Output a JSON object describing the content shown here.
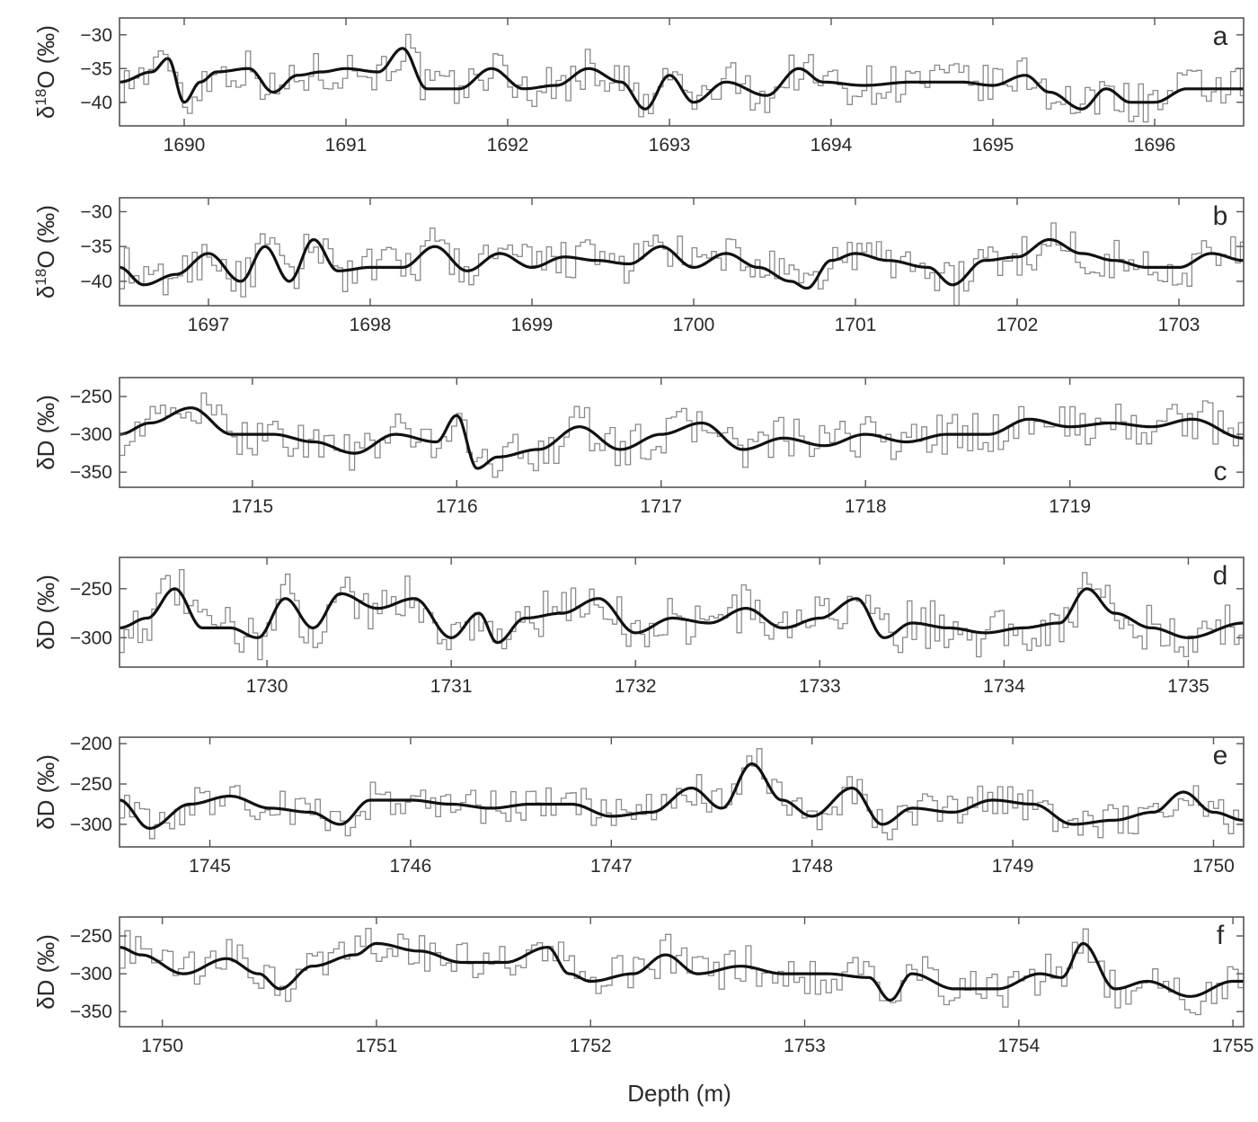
{
  "figure": {
    "xlabel": "Depth (m)"
  },
  "colors": {
    "raw": "#8a8a8a",
    "smooth": "#111111",
    "frame": "#555555",
    "text": "#2a2a2a"
  },
  "chart_data": [
    {
      "type": "line",
      "panel_label": "a",
      "ylabel_base": "δ",
      "ylabel_sup": "18",
      "ylabel_tail": "O (‰)",
      "xlim": [
        1689.6,
        1696.55
      ],
      "ylim": [
        -43.5,
        -27.5
      ],
      "xticks": [
        1690,
        1691,
        1692,
        1693,
        1694,
        1695,
        1696
      ],
      "yticks": [
        -30,
        -35,
        -40
      ],
      "grid": false,
      "series": [
        {
          "role": "raw",
          "step": 0.03,
          "amp": 2.2
        },
        {
          "role": "smooth",
          "x": [
            1689.6,
            1689.8,
            1689.9,
            1690.0,
            1690.1,
            1690.2,
            1690.4,
            1690.55,
            1690.7,
            1690.85,
            1691.0,
            1691.2,
            1691.35,
            1691.5,
            1691.7,
            1691.9,
            1692.1,
            1692.3,
            1692.5,
            1692.7,
            1692.85,
            1693.0,
            1693.15,
            1693.35,
            1693.6,
            1693.8,
            1693.95,
            1694.2,
            1694.5,
            1694.8,
            1695.0,
            1695.2,
            1695.35,
            1695.55,
            1695.7,
            1695.85,
            1696.0,
            1696.2,
            1696.55
          ],
          "values": [
            -37,
            -35.5,
            -33.5,
            -40,
            -37,
            -35.5,
            -35,
            -38.5,
            -36,
            -35.5,
            -35,
            -35.5,
            -32,
            -38,
            -38,
            -35,
            -38,
            -37.5,
            -35,
            -37,
            -41,
            -36,
            -40,
            -37,
            -39,
            -35,
            -37,
            -37.5,
            -37,
            -37,
            -37.5,
            -36,
            -38.5,
            -41,
            -38,
            -40,
            -40,
            -38,
            -38
          ]
        }
      ]
    },
    {
      "type": "line",
      "panel_label": "b",
      "ylabel_base": "δ",
      "ylabel_sup": "18",
      "ylabel_tail": "O (‰)",
      "xlim": [
        1696.45,
        1703.4
      ],
      "ylim": [
        -43.5,
        -28
      ],
      "xticks": [
        1697,
        1698,
        1699,
        1700,
        1701,
        1702,
        1703
      ],
      "yticks": [
        -30,
        -35,
        -40
      ],
      "grid": false,
      "series": [
        {
          "role": "raw",
          "step": 0.03,
          "amp": 2.2
        },
        {
          "role": "smooth",
          "x": [
            1696.45,
            1696.6,
            1696.8,
            1697.0,
            1697.2,
            1697.35,
            1697.5,
            1697.65,
            1697.8,
            1698.0,
            1698.2,
            1698.4,
            1698.6,
            1698.8,
            1699.0,
            1699.2,
            1699.4,
            1699.6,
            1699.8,
            1700.0,
            1700.2,
            1700.4,
            1700.6,
            1700.7,
            1700.85,
            1701.0,
            1701.2,
            1701.45,
            1701.6,
            1701.8,
            1702.0,
            1702.2,
            1702.4,
            1702.6,
            1702.8,
            1703.0,
            1703.2,
            1703.4
          ],
          "values": [
            -38,
            -40.5,
            -39,
            -36,
            -40,
            -35,
            -40,
            -34,
            -38.5,
            -38,
            -38,
            -35,
            -38.5,
            -36,
            -38,
            -36.5,
            -37,
            -37.5,
            -35,
            -38,
            -36,
            -38,
            -40,
            -41,
            -37,
            -36,
            -37,
            -38,
            -40.5,
            -37,
            -36.5,
            -34,
            -36,
            -37,
            -38,
            -38,
            -36,
            -37
          ]
        }
      ]
    },
    {
      "type": "line",
      "panel_label": "c",
      "ylabel_base": "δ",
      "ylabel_sup": "",
      "ylabel_tail": "D (‰)",
      "xlim": [
        1714.35,
        1719.85
      ],
      "ylim": [
        -370,
        -225
      ],
      "xticks": [
        1715,
        1716,
        1717,
        1718,
        1719
      ],
      "yticks": [
        -250,
        -300,
        -350
      ],
      "grid": false,
      "series": [
        {
          "role": "raw",
          "step": 0.025,
          "amp": 20
        },
        {
          "role": "smooth",
          "x": [
            1714.35,
            1714.5,
            1714.7,
            1714.9,
            1715.1,
            1715.3,
            1715.5,
            1715.7,
            1715.9,
            1716.0,
            1716.1,
            1716.2,
            1716.4,
            1716.6,
            1716.8,
            1717.0,
            1717.2,
            1717.4,
            1717.6,
            1717.8,
            1718.0,
            1718.2,
            1718.4,
            1718.6,
            1718.8,
            1719.0,
            1719.2,
            1719.4,
            1719.6,
            1719.85
          ],
          "values": [
            -300,
            -285,
            -265,
            -300,
            -300,
            -310,
            -325,
            -300,
            -310,
            -275,
            -345,
            -330,
            -320,
            -290,
            -320,
            -300,
            -285,
            -320,
            -305,
            -315,
            -300,
            -310,
            -300,
            -300,
            -280,
            -290,
            -285,
            -290,
            -280,
            -305
          ]
        }
      ]
    },
    {
      "type": "line",
      "panel_label": "d",
      "ylabel_base": "δ",
      "ylabel_sup": "",
      "ylabel_tail": "D (‰)",
      "xlim": [
        1729.2,
        1735.3
      ],
      "ylim": [
        -330,
        -218
      ],
      "xticks": [
        1730,
        1731,
        1732,
        1733,
        1734,
        1735
      ],
      "yticks": [
        -250,
        -300
      ],
      "grid": false,
      "series": [
        {
          "role": "raw",
          "step": 0.025,
          "amp": 18
        },
        {
          "role": "smooth",
          "x": [
            1729.2,
            1729.35,
            1729.5,
            1729.65,
            1729.8,
            1729.95,
            1730.1,
            1730.25,
            1730.4,
            1730.6,
            1730.8,
            1731.0,
            1731.15,
            1731.25,
            1731.4,
            1731.6,
            1731.8,
            1732.0,
            1732.2,
            1732.4,
            1732.6,
            1732.8,
            1733.0,
            1733.2,
            1733.35,
            1733.5,
            1733.7,
            1733.9,
            1734.1,
            1734.3,
            1734.45,
            1734.6,
            1734.8,
            1735.0,
            1735.3
          ],
          "values": [
            -290,
            -280,
            -250,
            -290,
            -290,
            -300,
            -260,
            -290,
            -255,
            -270,
            -260,
            -300,
            -275,
            -305,
            -280,
            -275,
            -260,
            -295,
            -280,
            -285,
            -270,
            -290,
            -280,
            -260,
            -300,
            -285,
            -290,
            -295,
            -290,
            -285,
            -250,
            -275,
            -290,
            -300,
            -285
          ]
        }
      ]
    },
    {
      "type": "line",
      "panel_label": "e",
      "ylabel_base": "δ",
      "ylabel_sup": "",
      "ylabel_tail": "D (‰)",
      "xlim": [
        1744.55,
        1750.15
      ],
      "ylim": [
        -328,
        -192
      ],
      "xticks": [
        1745,
        1746,
        1747,
        1748,
        1749,
        1750
      ],
      "yticks": [
        -200,
        -250,
        -300
      ],
      "grid": false,
      "series": [
        {
          "role": "raw",
          "step": 0.025,
          "amp": 16
        },
        {
          "role": "smooth",
          "x": [
            1744.55,
            1744.7,
            1744.9,
            1745.1,
            1745.3,
            1745.5,
            1745.65,
            1745.8,
            1746.0,
            1746.2,
            1746.4,
            1746.6,
            1746.8,
            1747.0,
            1747.2,
            1747.4,
            1747.55,
            1747.7,
            1747.85,
            1748.0,
            1748.2,
            1748.35,
            1748.5,
            1748.7,
            1748.9,
            1749.1,
            1749.3,
            1749.5,
            1749.7,
            1749.85,
            1750.0,
            1750.15
          ],
          "values": [
            -270,
            -305,
            -275,
            -265,
            -280,
            -285,
            -300,
            -270,
            -270,
            -275,
            -280,
            -275,
            -275,
            -290,
            -285,
            -255,
            -280,
            -225,
            -270,
            -290,
            -255,
            -300,
            -280,
            -285,
            -270,
            -275,
            -300,
            -295,
            -285,
            -260,
            -285,
            -295
          ]
        }
      ]
    },
    {
      "type": "line",
      "panel_label": "f",
      "ylabel_base": "δ",
      "ylabel_sup": "",
      "ylabel_tail": "D (‰)",
      "xlim": [
        1749.8,
        1755.05
      ],
      "ylim": [
        -370,
        -225
      ],
      "xticks": [
        1750,
        1751,
        1752,
        1753,
        1754,
        1755
      ],
      "yticks": [
        -250,
        -300,
        -350
      ],
      "grid": false,
      "series": [
        {
          "role": "raw",
          "step": 0.025,
          "amp": 20
        },
        {
          "role": "smooth",
          "x": [
            1749.8,
            1749.9,
            1750.1,
            1750.3,
            1750.45,
            1750.55,
            1750.7,
            1750.9,
            1751.0,
            1751.2,
            1751.4,
            1751.6,
            1751.8,
            1751.9,
            1752.0,
            1752.2,
            1752.35,
            1752.5,
            1752.7,
            1752.9,
            1753.1,
            1753.3,
            1753.4,
            1753.5,
            1753.7,
            1753.9,
            1754.1,
            1754.2,
            1754.3,
            1754.45,
            1754.6,
            1754.8,
            1755.0,
            1755.05
          ],
          "values": [
            -265,
            -275,
            -300,
            -280,
            -300,
            -320,
            -290,
            -275,
            -260,
            -270,
            -285,
            -285,
            -265,
            -300,
            -310,
            -300,
            -275,
            -300,
            -290,
            -300,
            -300,
            -305,
            -335,
            -300,
            -320,
            -320,
            -300,
            -305,
            -260,
            -320,
            -310,
            -330,
            -310,
            -310
          ]
        }
      ]
    }
  ]
}
